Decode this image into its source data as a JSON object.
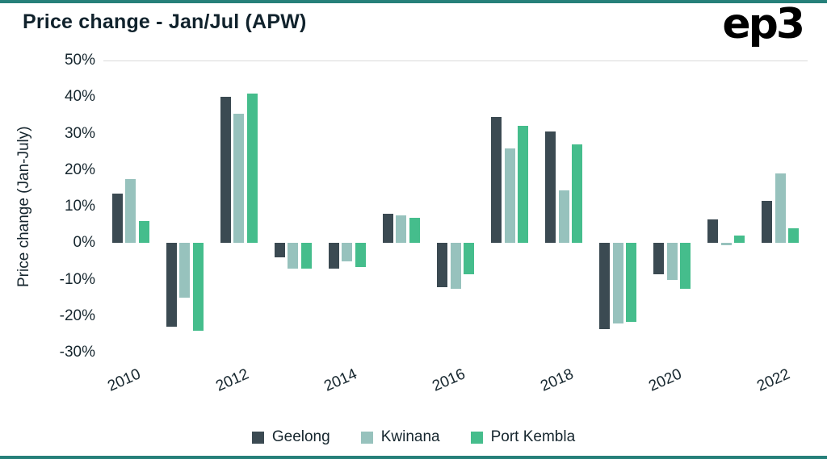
{
  "page": {
    "title": "Price change - Jan/Jul (APW)",
    "logo": "ep3",
    "accent_color": "#26807a"
  },
  "chart_data": {
    "type": "bar",
    "title": "Price change - Jan/Jul (APW)",
    "ylabel": "Price change (Jan-July)",
    "xlabel": "",
    "ylim": [
      -30,
      50
    ],
    "yticks": [
      50,
      40,
      30,
      20,
      10,
      0,
      -10,
      -20,
      -30
    ],
    "ytick_suffix": "%",
    "categories": [
      2010,
      2011,
      2012,
      2013,
      2014,
      2015,
      2016,
      2017,
      2018,
      2019,
      2020,
      2021,
      2022
    ],
    "x_tick_labels": [
      "2010",
      "2012",
      "2014",
      "2016",
      "2018",
      "2020",
      "2022"
    ],
    "grid": false,
    "legend_position": "bottom",
    "series": [
      {
        "name": "Geelong",
        "color": "#3b4a52",
        "values": [
          13.5,
          -23,
          40,
          -4,
          -7,
          8,
          -12,
          34.5,
          30.5,
          -23.5,
          -8.5,
          6.5,
          11.5
        ]
      },
      {
        "name": "Kwinana",
        "color": "#97c2bd",
        "values": [
          17.5,
          -15,
          35.5,
          -7,
          -5,
          7.5,
          -12.5,
          26,
          14.5,
          -22,
          -10,
          -0.5,
          19
        ]
      },
      {
        "name": "Port Kembla",
        "color": "#45bd8c",
        "values": [
          6,
          -24,
          41,
          -7,
          -6.5,
          7,
          -8.5,
          32,
          27,
          -21.5,
          -12.5,
          2,
          4
        ]
      }
    ]
  }
}
